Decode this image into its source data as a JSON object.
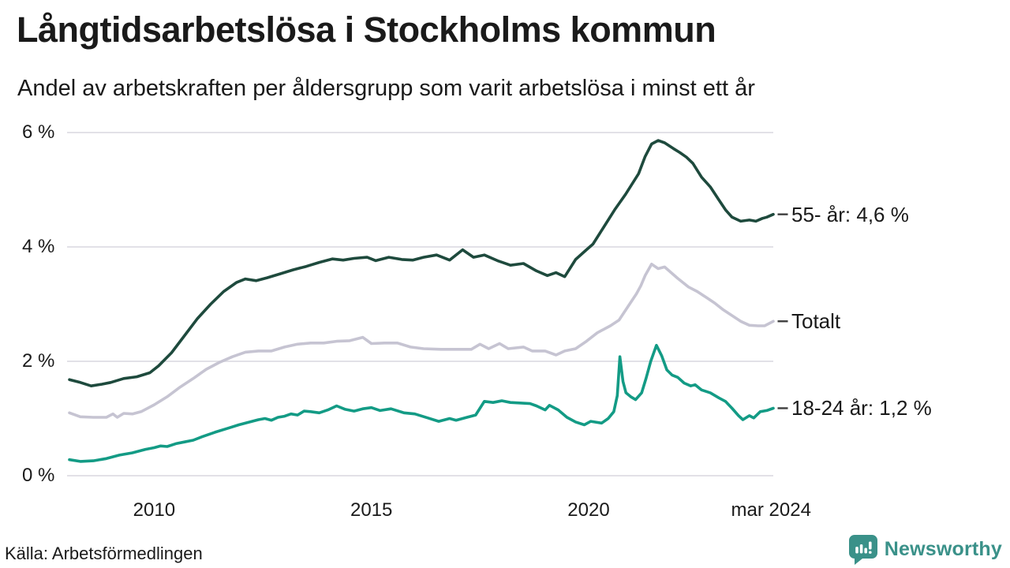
{
  "chart_data": {
    "type": "line",
    "title": "Långtidsarbetslösa i Stockholms kommun",
    "subtitle": "Andel av arbetskraften per åldersgrupp som varit arbetslösa i minst ett år",
    "unit": "%",
    "grid": "horizontal-only",
    "legend_position": "right-end-labels",
    "colors": {
      "text": "#1A1A1A",
      "gridline": "#E2E1E7",
      "label_connector": "#3F3F3F"
    },
    "x_axis": {
      "min": 2008.05,
      "max": 2024.25,
      "ticks": [
        {
          "t": 2010,
          "label": "2010"
        },
        {
          "t": 2015,
          "label": "2015"
        },
        {
          "t": 2020,
          "label": "2020"
        },
        {
          "t": 2024.2,
          "label": "mar 2024"
        }
      ]
    },
    "y_axis": {
      "min": 0,
      "max": 6,
      "ticks": [
        {
          "v": 6,
          "label": "6 %"
        },
        {
          "v": 4,
          "label": "4 %"
        },
        {
          "v": 2,
          "label": "2 %"
        },
        {
          "v": 0,
          "label": "0 %"
        }
      ]
    },
    "series": [
      {
        "name": "55- år",
        "label": "55- år: 4,6 %",
        "end_value": "4,6 %",
        "color": "#1E4A3D",
        "points": [
          [
            2008.05,
            1.68
          ],
          [
            2008.3,
            1.63
          ],
          [
            2008.55,
            1.57
          ],
          [
            2008.8,
            1.6
          ],
          [
            2009.0,
            1.63
          ],
          [
            2009.3,
            1.7
          ],
          [
            2009.6,
            1.73
          ],
          [
            2009.9,
            1.8
          ],
          [
            2010.1,
            1.92
          ],
          [
            2010.4,
            2.15
          ],
          [
            2010.7,
            2.45
          ],
          [
            2011.0,
            2.75
          ],
          [
            2011.3,
            3.0
          ],
          [
            2011.6,
            3.22
          ],
          [
            2011.9,
            3.38
          ],
          [
            2012.1,
            3.44
          ],
          [
            2012.35,
            3.41
          ],
          [
            2012.6,
            3.46
          ],
          [
            2012.9,
            3.53
          ],
          [
            2013.2,
            3.6
          ],
          [
            2013.5,
            3.66
          ],
          [
            2013.8,
            3.73
          ],
          [
            2014.1,
            3.79
          ],
          [
            2014.35,
            3.77
          ],
          [
            2014.6,
            3.8
          ],
          [
            2014.9,
            3.82
          ],
          [
            2015.1,
            3.76
          ],
          [
            2015.4,
            3.82
          ],
          [
            2015.7,
            3.78
          ],
          [
            2015.95,
            3.77
          ],
          [
            2016.2,
            3.82
          ],
          [
            2016.5,
            3.86
          ],
          [
            2016.8,
            3.77
          ],
          [
            2017.1,
            3.95
          ],
          [
            2017.35,
            3.82
          ],
          [
            2017.6,
            3.86
          ],
          [
            2017.9,
            3.76
          ],
          [
            2018.2,
            3.68
          ],
          [
            2018.5,
            3.71
          ],
          [
            2018.8,
            3.58
          ],
          [
            2019.05,
            3.5
          ],
          [
            2019.25,
            3.55
          ],
          [
            2019.45,
            3.48
          ],
          [
            2019.7,
            3.78
          ],
          [
            2019.95,
            3.95
          ],
          [
            2020.1,
            4.05
          ],
          [
            2020.35,
            4.35
          ],
          [
            2020.6,
            4.65
          ],
          [
            2020.85,
            4.92
          ],
          [
            2021.0,
            5.1
          ],
          [
            2021.15,
            5.28
          ],
          [
            2021.3,
            5.58
          ],
          [
            2021.45,
            5.8
          ],
          [
            2021.6,
            5.86
          ],
          [
            2021.75,
            5.82
          ],
          [
            2021.95,
            5.72
          ],
          [
            2022.1,
            5.65
          ],
          [
            2022.25,
            5.57
          ],
          [
            2022.4,
            5.46
          ],
          [
            2022.6,
            5.22
          ],
          [
            2022.8,
            5.05
          ],
          [
            2023.0,
            4.82
          ],
          [
            2023.15,
            4.65
          ],
          [
            2023.3,
            4.52
          ],
          [
            2023.5,
            4.45
          ],
          [
            2023.7,
            4.47
          ],
          [
            2023.85,
            4.45
          ],
          [
            2024.0,
            4.5
          ],
          [
            2024.1,
            4.52
          ],
          [
            2024.25,
            4.57
          ]
        ]
      },
      {
        "name": "Totalt",
        "label": "Totalt",
        "end_value": "2,7 %",
        "color": "#C6C4D2",
        "points": [
          [
            2008.05,
            1.1
          ],
          [
            2008.3,
            1.03
          ],
          [
            2008.6,
            1.02
          ],
          [
            2008.9,
            1.02
          ],
          [
            2009.05,
            1.08
          ],
          [
            2009.15,
            1.02
          ],
          [
            2009.3,
            1.09
          ],
          [
            2009.5,
            1.08
          ],
          [
            2009.7,
            1.12
          ],
          [
            2010.0,
            1.24
          ],
          [
            2010.3,
            1.38
          ],
          [
            2010.6,
            1.55
          ],
          [
            2010.9,
            1.7
          ],
          [
            2011.2,
            1.86
          ],
          [
            2011.5,
            1.98
          ],
          [
            2011.8,
            2.08
          ],
          [
            2012.1,
            2.16
          ],
          [
            2012.4,
            2.18
          ],
          [
            2012.7,
            2.18
          ],
          [
            2013.0,
            2.25
          ],
          [
            2013.3,
            2.3
          ],
          [
            2013.6,
            2.32
          ],
          [
            2013.9,
            2.32
          ],
          [
            2014.2,
            2.35
          ],
          [
            2014.5,
            2.36
          ],
          [
            2014.8,
            2.42
          ],
          [
            2015.0,
            2.31
          ],
          [
            2015.3,
            2.32
          ],
          [
            2015.6,
            2.32
          ],
          [
            2015.9,
            2.25
          ],
          [
            2016.2,
            2.22
          ],
          [
            2016.6,
            2.21
          ],
          [
            2017.0,
            2.21
          ],
          [
            2017.3,
            2.21
          ],
          [
            2017.5,
            2.3
          ],
          [
            2017.7,
            2.22
          ],
          [
            2017.95,
            2.31
          ],
          [
            2018.15,
            2.22
          ],
          [
            2018.5,
            2.25
          ],
          [
            2018.7,
            2.18
          ],
          [
            2019.0,
            2.18
          ],
          [
            2019.25,
            2.11
          ],
          [
            2019.45,
            2.18
          ],
          [
            2019.7,
            2.22
          ],
          [
            2019.95,
            2.35
          ],
          [
            2020.2,
            2.5
          ],
          [
            2020.5,
            2.62
          ],
          [
            2020.7,
            2.72
          ],
          [
            2020.9,
            2.95
          ],
          [
            2021.1,
            3.18
          ],
          [
            2021.2,
            3.32
          ],
          [
            2021.3,
            3.5
          ],
          [
            2021.45,
            3.7
          ],
          [
            2021.6,
            3.62
          ],
          [
            2021.75,
            3.65
          ],
          [
            2021.9,
            3.55
          ],
          [
            2022.05,
            3.45
          ],
          [
            2022.3,
            3.3
          ],
          [
            2022.5,
            3.22
          ],
          [
            2022.7,
            3.12
          ],
          [
            2022.9,
            3.02
          ],
          [
            2023.1,
            2.9
          ],
          [
            2023.3,
            2.8
          ],
          [
            2023.5,
            2.7
          ],
          [
            2023.7,
            2.63
          ],
          [
            2023.9,
            2.62
          ],
          [
            2024.05,
            2.62
          ],
          [
            2024.25,
            2.7
          ]
        ]
      },
      {
        "name": "18-24 år",
        "label": "18-24 år: 1,2 %",
        "end_value": "1,2 %",
        "color": "#139B85",
        "points": [
          [
            2008.05,
            0.28
          ],
          [
            2008.3,
            0.25
          ],
          [
            2008.6,
            0.26
          ],
          [
            2008.9,
            0.3
          ],
          [
            2009.2,
            0.36
          ],
          [
            2009.5,
            0.4
          ],
          [
            2009.8,
            0.46
          ],
          [
            2010.0,
            0.49
          ],
          [
            2010.15,
            0.52
          ],
          [
            2010.3,
            0.51
          ],
          [
            2010.5,
            0.56
          ],
          [
            2010.7,
            0.59
          ],
          [
            2010.9,
            0.62
          ],
          [
            2011.1,
            0.68
          ],
          [
            2011.4,
            0.76
          ],
          [
            2011.7,
            0.83
          ],
          [
            2011.95,
            0.89
          ],
          [
            2012.2,
            0.94
          ],
          [
            2012.4,
            0.98
          ],
          [
            2012.55,
            1.0
          ],
          [
            2012.7,
            0.97
          ],
          [
            2012.85,
            1.02
          ],
          [
            2013.0,
            1.04
          ],
          [
            2013.15,
            1.08
          ],
          [
            2013.3,
            1.06
          ],
          [
            2013.45,
            1.13
          ],
          [
            2013.6,
            1.12
          ],
          [
            2013.8,
            1.1
          ],
          [
            2014.0,
            1.15
          ],
          [
            2014.2,
            1.22
          ],
          [
            2014.4,
            1.16
          ],
          [
            2014.6,
            1.13
          ],
          [
            2014.8,
            1.17
          ],
          [
            2015.0,
            1.19
          ],
          [
            2015.2,
            1.14
          ],
          [
            2015.45,
            1.17
          ],
          [
            2015.75,
            1.1
          ],
          [
            2016.0,
            1.08
          ],
          [
            2016.3,
            1.01
          ],
          [
            2016.55,
            0.95
          ],
          [
            2016.8,
            1.0
          ],
          [
            2016.95,
            0.97
          ],
          [
            2017.2,
            1.02
          ],
          [
            2017.4,
            1.06
          ],
          [
            2017.6,
            1.3
          ],
          [
            2017.8,
            1.28
          ],
          [
            2018.0,
            1.31
          ],
          [
            2018.2,
            1.28
          ],
          [
            2018.45,
            1.27
          ],
          [
            2018.65,
            1.26
          ],
          [
            2018.8,
            1.22
          ],
          [
            2019.0,
            1.15
          ],
          [
            2019.1,
            1.23
          ],
          [
            2019.3,
            1.15
          ],
          [
            2019.5,
            1.02
          ],
          [
            2019.7,
            0.94
          ],
          [
            2019.9,
            0.89
          ],
          [
            2020.05,
            0.95
          ],
          [
            2020.3,
            0.92
          ],
          [
            2020.45,
            1.0
          ],
          [
            2020.58,
            1.12
          ],
          [
            2020.66,
            1.4
          ],
          [
            2020.72,
            2.08
          ],
          [
            2020.79,
            1.65
          ],
          [
            2020.86,
            1.45
          ],
          [
            2020.97,
            1.38
          ],
          [
            2021.08,
            1.33
          ],
          [
            2021.22,
            1.45
          ],
          [
            2021.32,
            1.7
          ],
          [
            2021.43,
            2.0
          ],
          [
            2021.56,
            2.28
          ],
          [
            2021.68,
            2.1
          ],
          [
            2021.8,
            1.85
          ],
          [
            2021.92,
            1.76
          ],
          [
            2022.05,
            1.72
          ],
          [
            2022.2,
            1.62
          ],
          [
            2022.35,
            1.57
          ],
          [
            2022.45,
            1.59
          ],
          [
            2022.6,
            1.5
          ],
          [
            2022.8,
            1.45
          ],
          [
            2023.0,
            1.36
          ],
          [
            2023.15,
            1.3
          ],
          [
            2023.3,
            1.18
          ],
          [
            2023.45,
            1.05
          ],
          [
            2023.55,
            0.98
          ],
          [
            2023.7,
            1.05
          ],
          [
            2023.8,
            1.01
          ],
          [
            2023.95,
            1.12
          ],
          [
            2024.1,
            1.14
          ],
          [
            2024.25,
            1.18
          ]
        ]
      }
    ]
  },
  "source": {
    "label": "Källa: Arbetsförmedlingen"
  },
  "branding": {
    "name": "Newsworthy",
    "color": "#3A9189",
    "icon": "chart-speech-bubble"
  }
}
